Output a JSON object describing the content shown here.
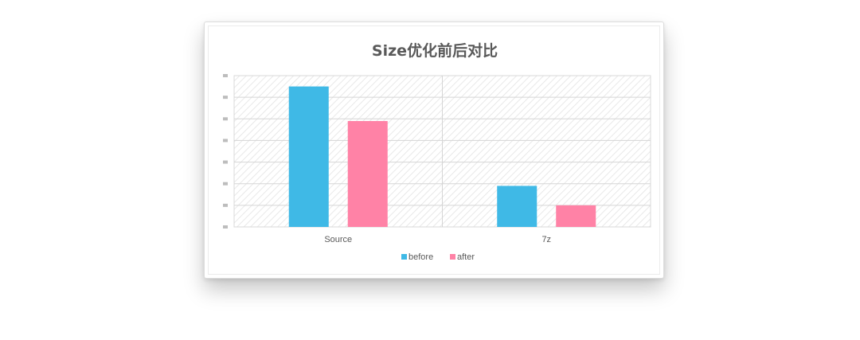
{
  "chart_data": {
    "type": "bar",
    "title": "Size优化前后对比",
    "categories": [
      "Source",
      "7z"
    ],
    "series": [
      {
        "name": "before",
        "color": "#3fb9e6",
        "values": [
          6.5,
          1.9
        ]
      },
      {
        "name": "after",
        "color": "#ff82a6",
        "values": [
          4.9,
          1.0
        ]
      }
    ],
    "ylim": [
      0,
      7
    ],
    "yticks": [],
    "grid": true,
    "legend": "bottom"
  }
}
